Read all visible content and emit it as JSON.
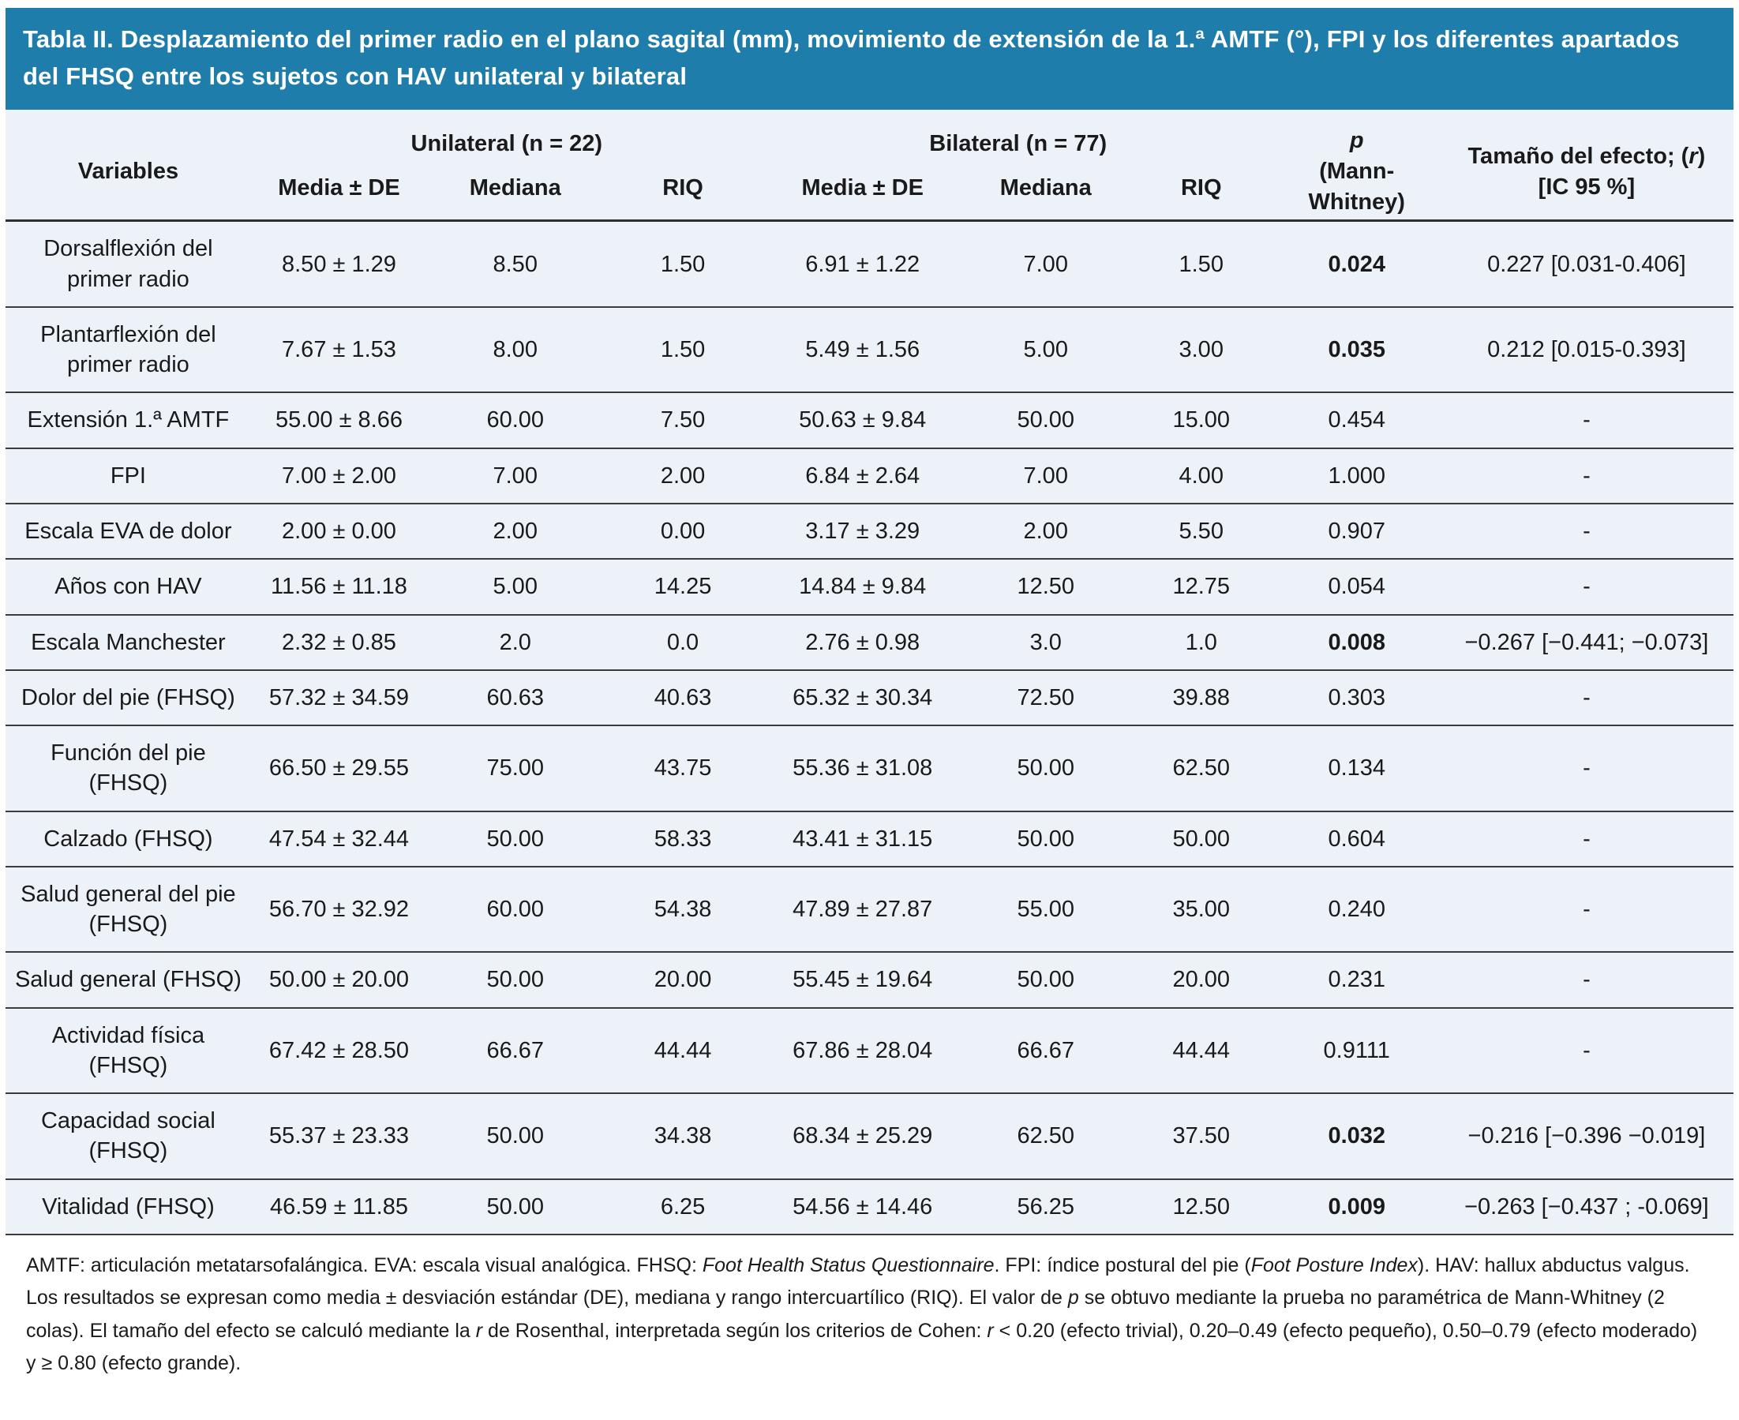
{
  "title": "Tabla II. Desplazamiento del primer radio en el plano sagital (mm), movimiento de extensión de la 1.ª AMTF (°), FPI y los diferentes apartados del FHSQ entre los sujetos con HAV unilateral y bilateral",
  "colors": {
    "header_bg": "#1f7dab",
    "table_bg": "#edf1f8",
    "rule": "#3b3b3b",
    "title_text": "#ffffff"
  },
  "table": {
    "variables_header": "Variables",
    "group_unilateral": "Unilateral (n = 22)",
    "group_bilateral": "Bilateral (n = 77)",
    "sub_headers": [
      "Media ± DE",
      "Mediana",
      "RIQ",
      "Media ± DE",
      "Mediana",
      "RIQ"
    ],
    "p_header": [
      {
        "t": "p",
        "em": true
      },
      {
        "t": "\n(Mann-\nWhitney)",
        "em": false
      }
    ],
    "effect_header": [
      {
        "t": "Tamaño del efecto; (",
        "em": false
      },
      {
        "t": "r",
        "em": true
      },
      {
        "t": ")\n[IC 95 %]",
        "em": false
      }
    ],
    "column_keys": [
      "variable",
      "uni-media-de",
      "uni-mediana",
      "uni-riq",
      "bi-media-de",
      "bi-mediana",
      "bi-riq",
      "p-value",
      "effect-size"
    ],
    "rows": [
      {
        "cells": [
          "Dorsalflexión del primer radio",
          "8.50 ± 1.29",
          "8.50",
          "1.50",
          "6.91 ± 1.22",
          "7.00",
          "1.50",
          "0.024",
          "0.227 [0.031-0.406]"
        ],
        "p_bold": true
      },
      {
        "cells": [
          "Plantarflexión del primer radio",
          "7.67 ± 1.53",
          "8.00",
          "1.50",
          "5.49 ± 1.56",
          "5.00",
          "3.00",
          "0.035",
          "0.212 [0.015-0.393]"
        ],
        "p_bold": true
      },
      {
        "cells": [
          "Extensión 1.ª AMTF",
          "55.00 ± 8.66",
          "60.00",
          "7.50",
          "50.63 ± 9.84",
          "50.00",
          "15.00",
          "0.454",
          "-"
        ],
        "p_bold": false
      },
      {
        "cells": [
          "FPI",
          "7.00 ± 2.00",
          "7.00",
          "2.00",
          "6.84 ± 2.64",
          "7.00",
          "4.00",
          "1.000",
          "-"
        ],
        "p_bold": false
      },
      {
        "cells": [
          "Escala EVA de dolor",
          "2.00 ± 0.00",
          "2.00",
          "0.00",
          "3.17 ± 3.29",
          "2.00",
          "5.50",
          "0.907",
          "-"
        ],
        "p_bold": false
      },
      {
        "cells": [
          "Años con HAV",
          "11.56 ± 11.18",
          "5.00",
          "14.25",
          "14.84 ± 9.84",
          "12.50",
          "12.75",
          "0.054",
          "-"
        ],
        "p_bold": false
      },
      {
        "cells": [
          "Escala Manchester",
          "2.32 ± 0.85",
          "2.0",
          "0.0",
          "2.76 ± 0.98",
          "3.0",
          "1.0",
          "0.008",
          "−0.267 [−0.441; −0.073]"
        ],
        "p_bold": true
      },
      {
        "cells": [
          "Dolor del pie (FHSQ)",
          "57.32 ± 34.59",
          "60.63",
          "40.63",
          "65.32 ± 30.34",
          "72.50",
          "39.88",
          "0.303",
          "-"
        ],
        "p_bold": false
      },
      {
        "cells": [
          "Función del pie (FHSQ)",
          "66.50 ± 29.55",
          "75.00",
          "43.75",
          "55.36 ± 31.08",
          "50.00",
          "62.50",
          "0.134",
          "-"
        ],
        "p_bold": false
      },
      {
        "cells": [
          "Calzado (FHSQ)",
          "47.54 ± 32.44",
          "50.00",
          "58.33",
          "43.41 ± 31.15",
          "50.00",
          "50.00",
          "0.604",
          "-"
        ],
        "p_bold": false
      },
      {
        "cells": [
          "Salud general del pie (FHSQ)",
          "56.70 ± 32.92",
          "60.00",
          "54.38",
          "47.89 ± 27.87",
          "55.00",
          "35.00",
          "0.240",
          "-"
        ],
        "p_bold": false
      },
      {
        "cells": [
          "Salud general (FHSQ)",
          "50.00 ± 20.00",
          "50.00",
          "20.00",
          "55.45 ± 19.64",
          "50.00",
          "20.00",
          "0.231",
          "-"
        ],
        "p_bold": false
      },
      {
        "cells": [
          "Actividad física (FHSQ)",
          "67.42 ± 28.50",
          "66.67",
          "44.44",
          "67.86 ± 28.04",
          "66.67",
          "44.44",
          "0.9111",
          "-"
        ],
        "p_bold": false
      },
      {
        "cells": [
          "Capacidad social (FHSQ)",
          "55.37 ± 23.33",
          "50.00",
          "34.38",
          "68.34 ± 25.29",
          "62.50",
          "37.50",
          "0.032",
          "−0.216 [−0.396 −0.019]"
        ],
        "p_bold": true
      },
      {
        "cells": [
          "Vitalidad (FHSQ)",
          "46.59 ± 11.85",
          "50.00",
          "6.25",
          "54.56 ± 14.46",
          "56.25",
          "12.50",
          "0.009",
          "−0.263 [−0.437 ; -0.069]"
        ],
        "p_bold": true
      }
    ]
  },
  "footnotes": [
    [
      {
        "t": "AMTF: articulación metatarsofalángica. EVA: escala visual analógica. FHSQ: ",
        "em": false
      },
      {
        "t": "Foot Health Status Questionnaire",
        "em": true
      },
      {
        "t": ". FPI: índice postural del pie (",
        "em": false
      },
      {
        "t": "Foot Posture Index",
        "em": true
      },
      {
        "t": "). HAV: hallux abductus valgus.",
        "em": false
      }
    ],
    [
      {
        "t": "Los resultados se expresan como media ± desviación estándar (DE), mediana y rango intercuartílico (RIQ). El valor de ",
        "em": false
      },
      {
        "t": "p",
        "em": true
      },
      {
        "t": " se obtuvo mediante la prueba no paramétrica de Mann-Whitney (2 colas). El tamaño del efecto se calculó mediante la ",
        "em": false
      },
      {
        "t": "r",
        "em": true
      },
      {
        "t": " de Rosenthal, interpretada según los criterios de Cohen: ",
        "em": false
      },
      {
        "t": "r",
        "em": true
      },
      {
        "t": " < 0.20 (efecto trivial), 0.20–0.49 (efecto pequeño), 0.50–0.79 (efecto moderado) y ≥ 0.80 (efecto grande).",
        "em": false
      }
    ]
  ]
}
